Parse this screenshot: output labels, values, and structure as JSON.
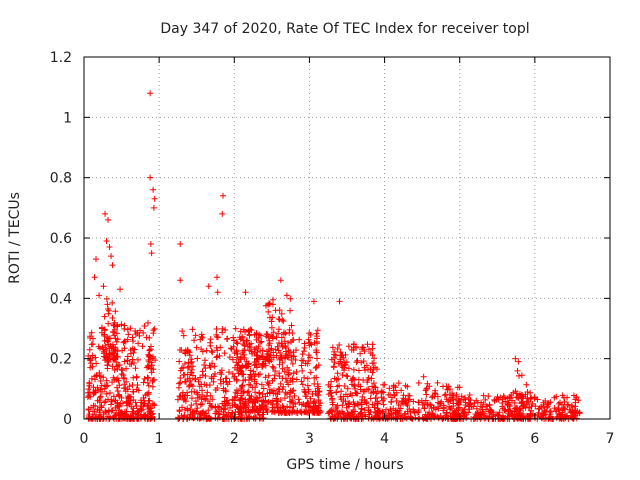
{
  "chart_data": {
    "type": "scatter",
    "title": "Day 347 of 2020, Rate Of TEC Index for receiver topl",
    "xlabel": "GPS time / hours",
    "ylabel": "ROTI / TECUs",
    "xlim": [
      0,
      7
    ],
    "ylim": [
      0,
      1.2
    ],
    "xticks": [
      "0",
      "1",
      "2",
      "3",
      "4",
      "5",
      "6",
      "7"
    ],
    "yticks": [
      "0",
      "0.2",
      "0.4",
      "0.6",
      "0.8",
      "1",
      "1.2"
    ],
    "grid": true,
    "marker": "+",
    "color": "#ff0000",
    "outliers": [
      [
        0.88,
        1.08
      ],
      [
        0.88,
        0.8
      ],
      [
        0.92,
        0.76
      ],
      [
        0.94,
        0.73
      ],
      [
        0.93,
        0.7
      ],
      [
        0.89,
        0.58
      ],
      [
        0.9,
        0.55
      ],
      [
        0.28,
        0.68
      ],
      [
        0.32,
        0.66
      ],
      [
        0.3,
        0.59
      ],
      [
        0.34,
        0.57
      ],
      [
        0.36,
        0.54
      ],
      [
        0.38,
        0.51
      ],
      [
        1.85,
        0.74
      ],
      [
        1.84,
        0.68
      ],
      [
        1.28,
        0.58
      ],
      [
        0.16,
        0.53
      ],
      [
        0.14,
        0.47
      ],
      [
        0.2,
        0.41
      ],
      [
        0.26,
        0.44
      ],
      [
        1.28,
        0.46
      ],
      [
        1.77,
        0.47
      ],
      [
        1.66,
        0.44
      ],
      [
        1.78,
        0.42
      ],
      [
        2.15,
        0.42
      ],
      [
        2.62,
        0.46
      ],
      [
        2.7,
        0.41
      ],
      [
        3.06,
        0.39
      ],
      [
        3.4,
        0.39
      ],
      [
        0.48,
        0.43
      ],
      [
        5.74,
        0.2
      ],
      [
        5.78,
        0.19
      ],
      [
        4.52,
        0.14
      ]
    ],
    "clusters": [
      {
        "x": [
          0.05,
          0.95
        ],
        "y": [
          0.0,
          0.32
        ],
        "n": 420
      },
      {
        "x": [
          0.25,
          0.45
        ],
        "y": [
          0.2,
          0.4
        ],
        "n": 60
      },
      {
        "x": [
          1.25,
          2.4
        ],
        "y": [
          0.0,
          0.3
        ],
        "n": 420
      },
      {
        "x": [
          2.0,
          3.15
        ],
        "y": [
          0.02,
          0.3
        ],
        "n": 400
      },
      {
        "x": [
          2.4,
          2.8
        ],
        "y": [
          0.2,
          0.4
        ],
        "n": 60
      },
      {
        "x": [
          3.25,
          3.9
        ],
        "y": [
          0.0,
          0.25
        ],
        "n": 260
      },
      {
        "x": [
          3.9,
          5.0
        ],
        "y": [
          0.0,
          0.12
        ],
        "n": 260
      },
      {
        "x": [
          4.9,
          6.6
        ],
        "y": [
          0.0,
          0.08
        ],
        "n": 340
      },
      {
        "x": [
          5.65,
          5.95
        ],
        "y": [
          0.0,
          0.16
        ],
        "n": 50
      }
    ]
  }
}
